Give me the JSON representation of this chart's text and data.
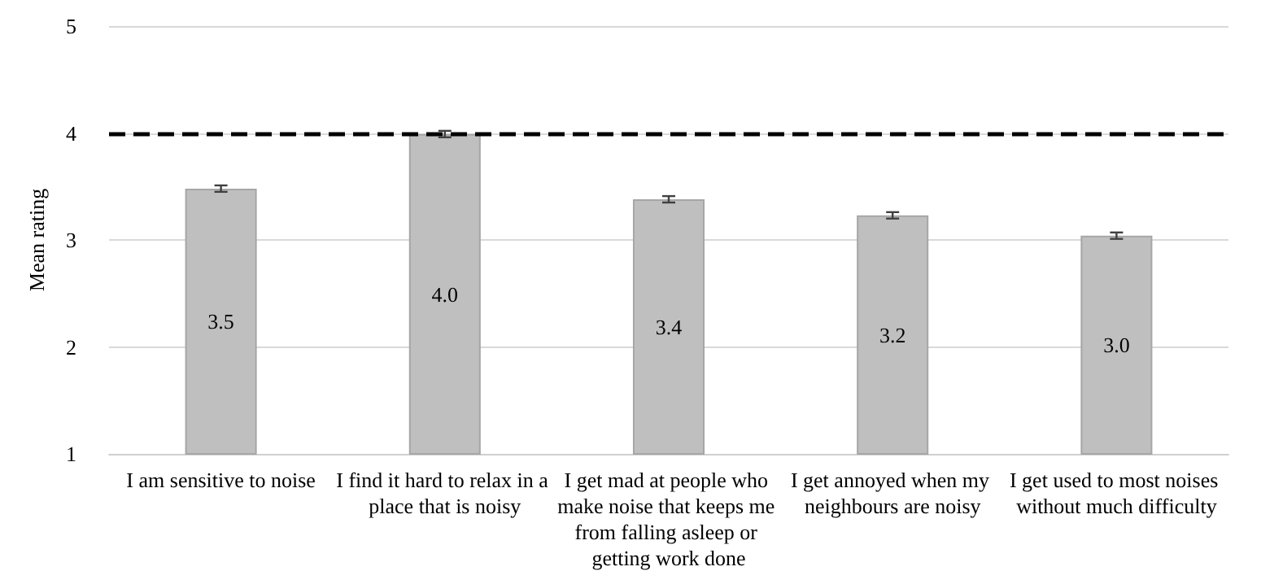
{
  "chart_data": {
    "type": "bar",
    "ylabel": "Mean rating",
    "categories": [
      "I am sensitive to noise",
      "I find it hard to relax in a place that is noisy",
      "I get mad at people who make noise that keeps me from falling asleep or getting work done",
      "I get annoyed when my neighbours are noisy",
      "I get used to most noises without much difficulty"
    ],
    "series": [
      {
        "color": "#bfbfbf",
        "values": [
          3.48,
          3.99,
          3.38,
          3.23,
          3.04
        ],
        "errors": [
          0.03,
          0.03,
          0.03,
          0.03,
          0.03
        ],
        "value_labels": [
          "3.5",
          "4.0",
          "3.4",
          "3.2",
          "3.0"
        ]
      }
    ],
    "ylim": [
      1,
      5
    ],
    "yticks": [
      1,
      2,
      3,
      4,
      5
    ],
    "grid": "y",
    "ref_lines": [
      {
        "axis": "y",
        "value": 4,
        "color": "#000000",
        "line_style": "dashed"
      }
    ]
  }
}
